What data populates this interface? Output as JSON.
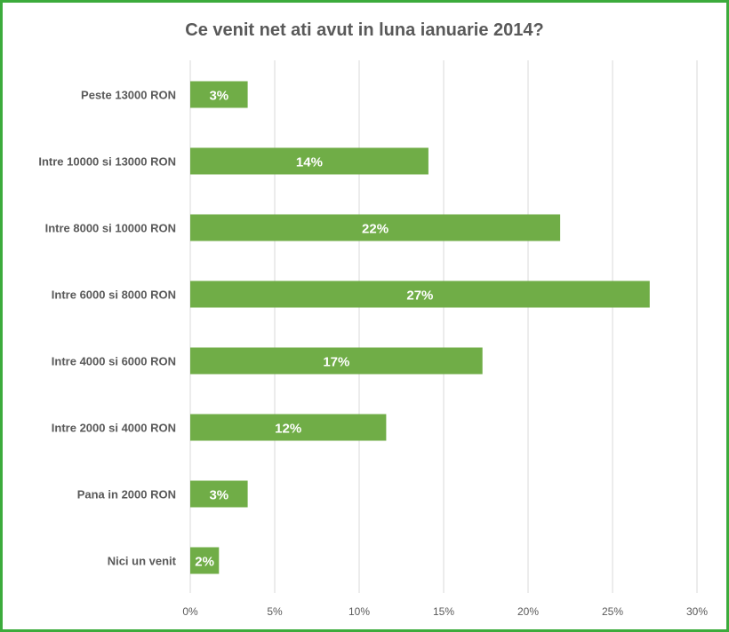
{
  "chart_data": {
    "type": "bar",
    "orientation": "horizontal",
    "title": "Ce venit net ati avut in luna ianuarie 2014?",
    "xlabel": "",
    "ylabel": "",
    "xlim": [
      0,
      30
    ],
    "x_ticks": [
      "0%",
      "5%",
      "10%",
      "15%",
      "20%",
      "25%",
      "30%"
    ],
    "x_tick_values": [
      0,
      5,
      10,
      15,
      20,
      25,
      30
    ],
    "grid": true,
    "categories": [
      "Peste 13000  RON",
      "Intre 10000 si 13000 RON",
      "Intre 8000 si 10000 RON",
      "Intre 6000 si 8000 RON",
      "Intre 4000 si 6000 RON",
      "Intre 2000 si 4000 RON",
      "Pana in 2000 RON",
      "Nici un venit"
    ],
    "values": [
      3.4,
      14.1,
      21.9,
      27.2,
      17.3,
      11.6,
      3.4,
      1.7
    ],
    "data_labels": [
      "3%",
      "14%",
      "22%",
      "27%",
      "17%",
      "12%",
      "3%",
      "2%"
    ],
    "bar_color": "#70ad47",
    "border_color": "#3cab3c"
  }
}
